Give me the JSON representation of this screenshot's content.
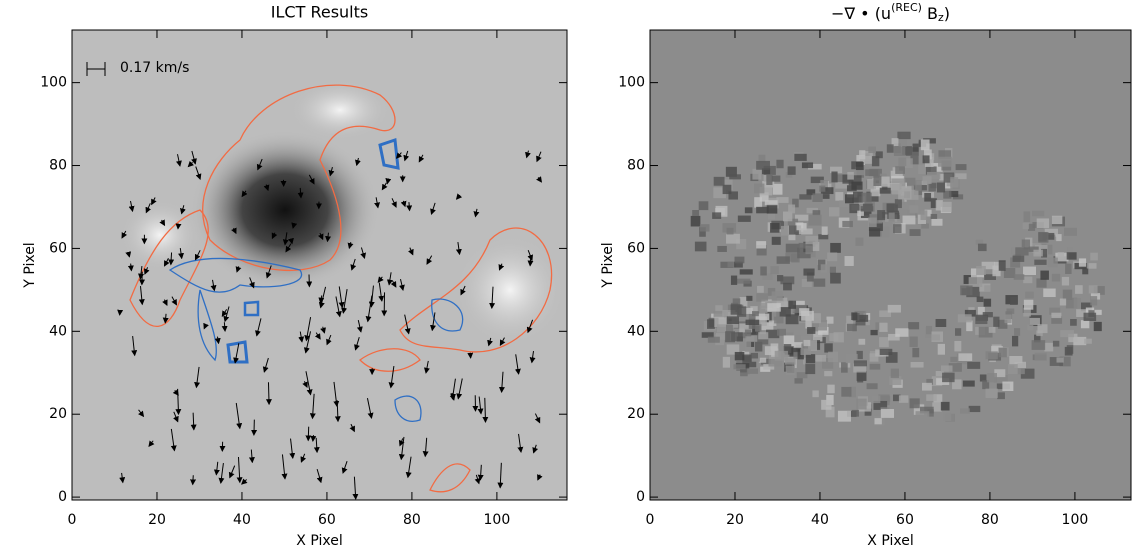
{
  "chart_data": [
    {
      "type": "image",
      "title": "ILCT Results",
      "annotation": "0.17 km/s",
      "xlabel": "X Pixel",
      "ylabel": "Y Pixel",
      "xlim": [
        0,
        116.5
      ],
      "ylim": [
        -0.7,
        112.7
      ],
      "xticks": [
        0,
        20,
        40,
        60,
        80,
        100
      ],
      "yticks": [
        0,
        20,
        40,
        60,
        80,
        100
      ]
    },
    {
      "type": "image",
      "title_parts": [
        "−∇ • (u",
        "(REC)",
        " B",
        "z",
        ")"
      ],
      "xlabel": "X Pixel",
      "ylabel": "Y Pixel",
      "xlim": [
        0,
        113.2
      ],
      "ylim": [
        -0.7,
        112.7
      ],
      "xticks": [
        0,
        20,
        40,
        60,
        80,
        100
      ],
      "yticks": [
        0,
        20,
        40,
        60,
        80,
        100
      ]
    }
  ]
}
